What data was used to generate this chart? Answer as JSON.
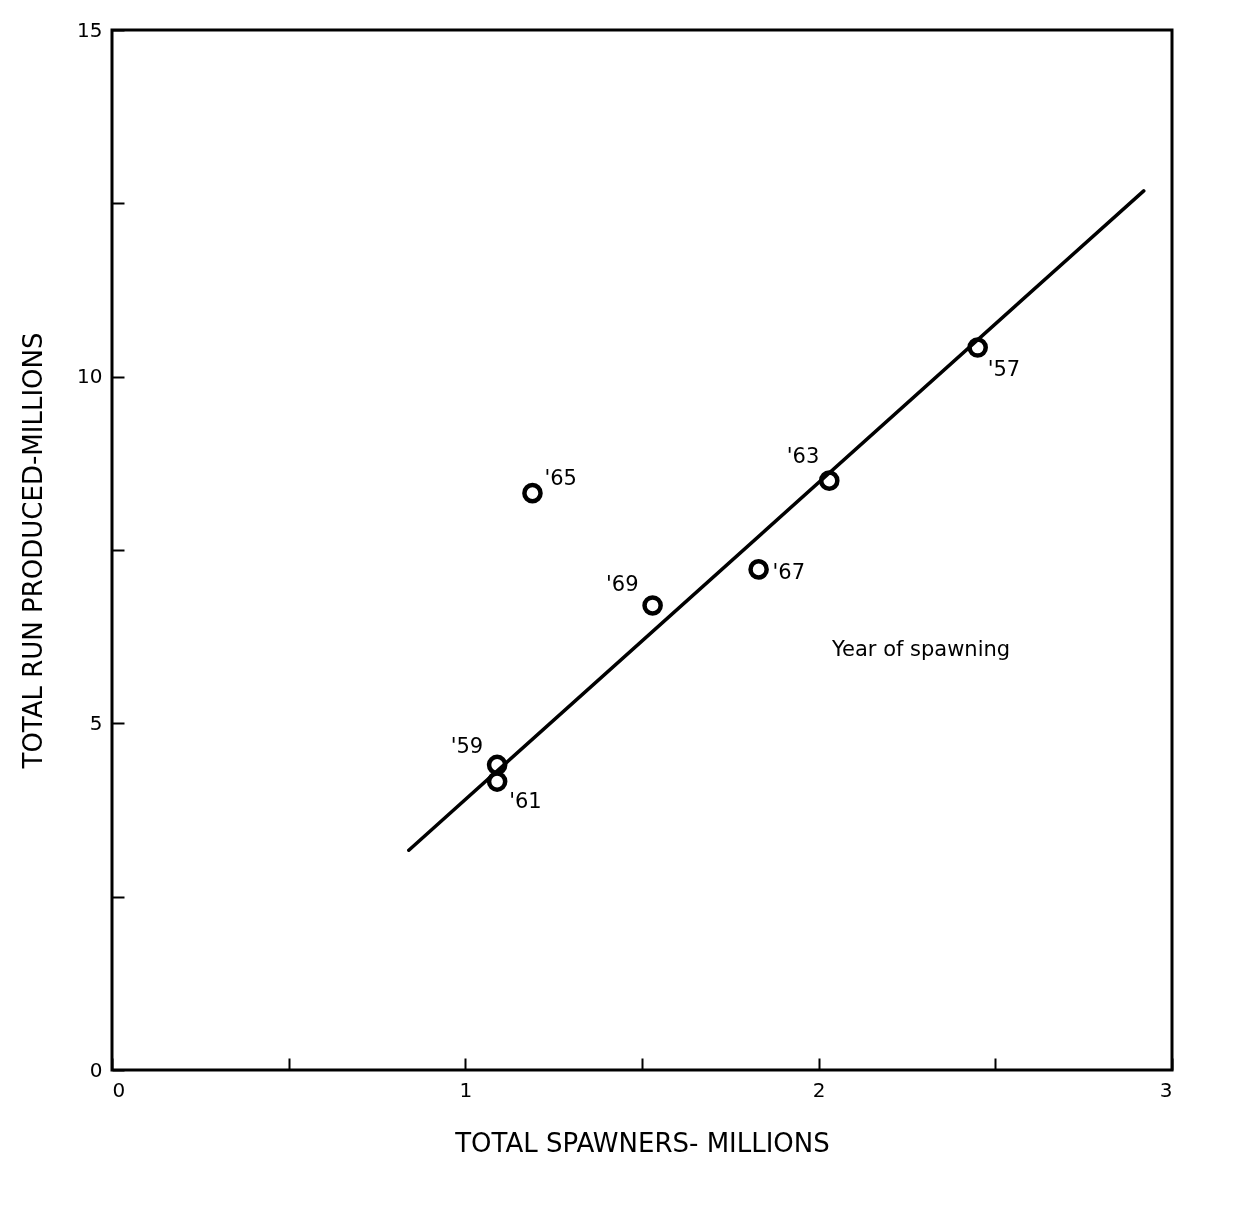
{
  "chart_data": {
    "type": "scatter",
    "xlabel": "TOTAL SPAWNERS- MILLIONS",
    "ylabel": "TOTAL RUN PRODUCED-MILLIONS",
    "xlim": [
      0,
      3
    ],
    "ylim": [
      0,
      15
    ],
    "xticks": [
      0,
      {
        "value": 0.5,
        "label": null
      },
      1,
      {
        "value": 1.5,
        "label": null
      },
      2,
      {
        "value": 2.5,
        "label": null
      },
      3
    ],
    "yticks": [
      0,
      {
        "value": 2.5,
        "label": null
      },
      5,
      {
        "value": 7.5,
        "label": null
      },
      10,
      {
        "value": 12.5,
        "label": null
      },
      15
    ],
    "grid": false,
    "marker": "circle",
    "line_style": "solid",
    "series": [
      {
        "color": "#000000",
        "x": [
          2.45,
          1.09,
          1.09,
          2.03,
          1.19,
          1.83,
          1.53
        ],
        "values": [
          10.42,
          4.4,
          4.16,
          8.5,
          8.32,
          7.22,
          6.7
        ]
      },
      {
        "type": "line",
        "marker": "none",
        "color": "#000000",
        "x": [
          0.84,
          2.92
        ],
        "values": [
          3.17,
          12.68
        ]
      }
    ],
    "annotations": [
      {
        "text": "'57",
        "x": 2.45,
        "y": 10.42
      },
      {
        "text": "'59",
        "x": 1.09,
        "y": 4.4
      },
      {
        "text": "'61",
        "x": 1.09,
        "y": 4.16
      },
      {
        "text": "'63",
        "x": 2.03,
        "y": 8.5
      },
      {
        "text": "'65",
        "x": 1.19,
        "y": 8.32
      },
      {
        "text": "'67",
        "x": 1.83,
        "y": 7.22
      },
      {
        "text": "'69",
        "x": 1.53,
        "y": 6.7
      },
      "Year of spawning"
    ]
  }
}
